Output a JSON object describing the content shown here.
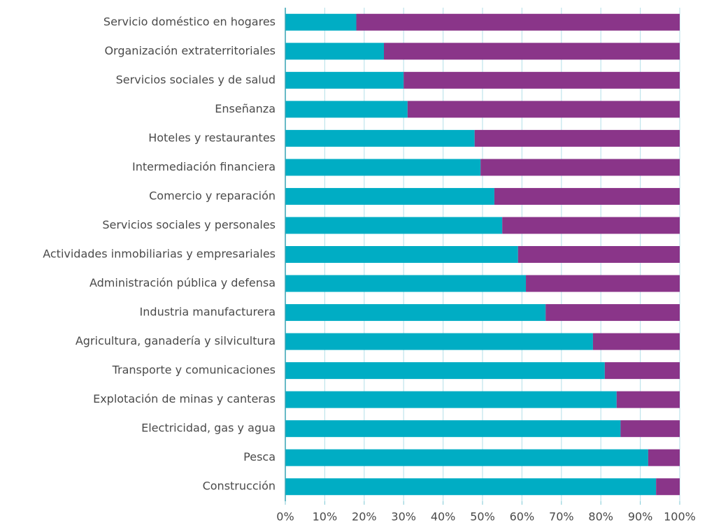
{
  "chart_data": {
    "type": "stacked_barh",
    "categories": [
      "Servicio doméstico en hogares",
      "Organización extraterritoriales",
      "Servicios sociales y de salud",
      "Enseñanza",
      "Hoteles y restaurantes",
      "Intermediación financiera",
      "Comercio y reparación",
      "Servicios sociales y personales",
      "Actividades inmobiliarias y empresariales",
      "Administración pública y defensa",
      "Industria manufacturera",
      "Agricultura, ganadería y silvicultura",
      "Transporte y comunicaciones",
      "Explotación de minas y canteras",
      "Electricidad, gas y agua",
      "Pesca",
      "Construcción"
    ],
    "series": [
      {
        "color": "#00adc4",
        "values": [
          18,
          25,
          30,
          31,
          48,
          49.5,
          53,
          55,
          59,
          61,
          66,
          78,
          81,
          84,
          85,
          92,
          94
        ]
      },
      {
        "color": "#8a3589",
        "values": [
          82,
          75,
          70,
          69,
          52,
          50.5,
          47,
          45,
          41,
          39,
          34,
          22,
          19,
          16,
          15,
          8,
          6
        ]
      }
    ],
    "xlim": [
      0,
      100
    ],
    "xticks": [
      {
        "value": 0,
        "label": "0%"
      },
      {
        "value": 10,
        "label": "10%"
      },
      {
        "value": 20,
        "label": "20%"
      },
      {
        "value": 30,
        "label": "30%"
      },
      {
        "value": 40,
        "label": "40%"
      },
      {
        "value": 50,
        "label": "50%"
      },
      {
        "value": 60,
        "label": "60%"
      },
      {
        "value": 70,
        "label": "70%"
      },
      {
        "value": 80,
        "label": "80%"
      },
      {
        "value": 90,
        "label": "90%"
      },
      {
        "value": 100,
        "label": "100%"
      }
    ],
    "grid": true
  }
}
